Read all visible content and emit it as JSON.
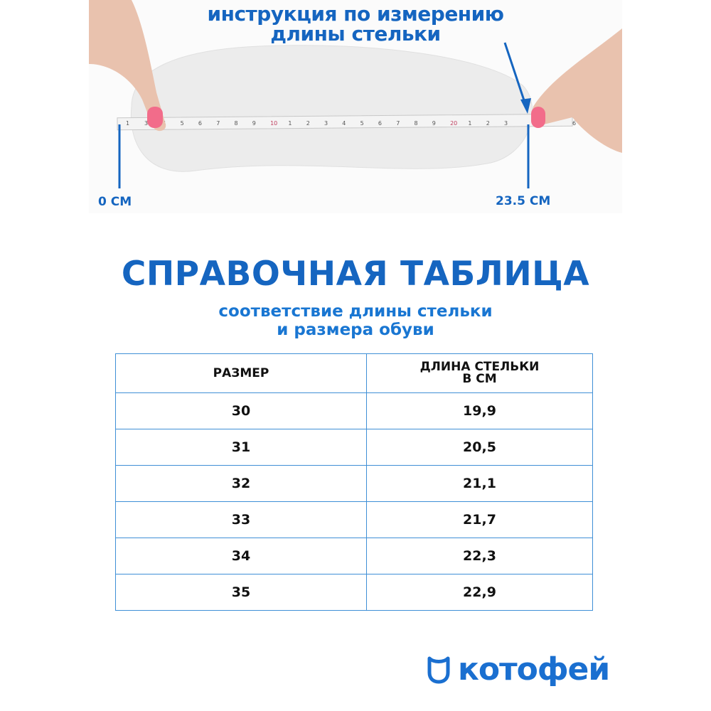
{
  "header": {
    "line1": "инструкция по измерению",
    "line2": "длины стельки",
    "start_label": "0 СМ",
    "end_label": "23.5 СМ",
    "tape_marks": [
      "1",
      "3",
      "4",
      "5",
      "6",
      "7",
      "8",
      "9",
      "10",
      "1",
      "2",
      "3",
      "4",
      "5",
      "6",
      "7",
      "8",
      "9",
      "20",
      "1",
      "2",
      "3",
      "6"
    ]
  },
  "reference": {
    "title": "СПРАВОЧНАЯ ТАБЛИЦА",
    "subtitle_line1": "соответствие длины стельки",
    "subtitle_line2": "и размера обуви"
  },
  "table": {
    "headers": [
      "РАЗМЕР",
      "ДЛИНА СТЕЛЬКИ",
      "В СМ"
    ],
    "rows": [
      {
        "size": "30",
        "length": "19,9"
      },
      {
        "size": "31",
        "length": "20,5"
      },
      {
        "size": "32",
        "length": "21,1"
      },
      {
        "size": "33",
        "length": "21,7"
      },
      {
        "size": "34",
        "length": "22,3"
      },
      {
        "size": "35",
        "length": "22,9"
      }
    ]
  },
  "brand": {
    "name": "котофей",
    "logo_icon": "cat-head-outline-icon",
    "color": "#1a6fd0"
  },
  "colors": {
    "accent": "#1565c0",
    "table_border": "#3f8fd6"
  }
}
